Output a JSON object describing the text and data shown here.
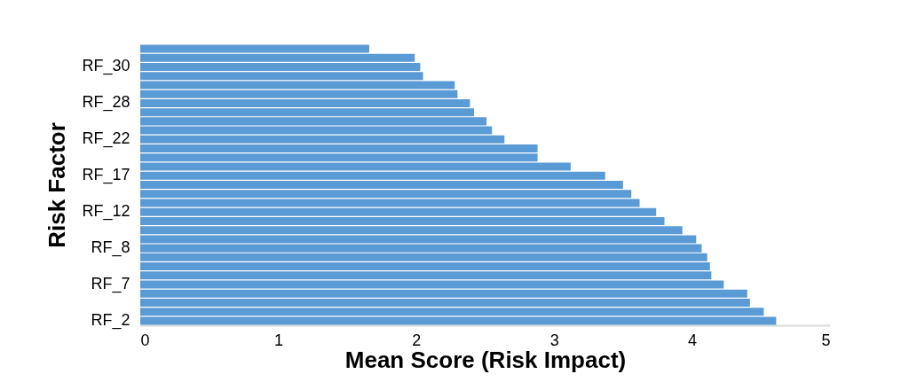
{
  "chart_data": {
    "type": "bar",
    "orientation": "horizontal",
    "xlabel": "Mean Score  (Risk Impact)",
    "ylabel": "Risk Factor",
    "categories": [
      null,
      null,
      "RF_30",
      null,
      null,
      null,
      "RF_28",
      null,
      null,
      null,
      "RF_22",
      null,
      null,
      null,
      "RF_17",
      null,
      null,
      null,
      "RF_12",
      null,
      null,
      null,
      "RF_8",
      null,
      null,
      null,
      "RF_7",
      null,
      null,
      null,
      "RF_2"
    ],
    "values": [
      1.66,
      1.99,
      2.03,
      2.05,
      2.28,
      2.3,
      2.39,
      2.42,
      2.51,
      2.55,
      2.64,
      2.88,
      2.88,
      3.12,
      3.37,
      3.5,
      3.56,
      3.62,
      3.74,
      3.8,
      3.93,
      4.03,
      4.07,
      4.11,
      4.13,
      4.14,
      4.23,
      4.4,
      4.42,
      4.52,
      4.61
    ],
    "color": "#5b9bd5",
    "xlim": [
      0,
      5
    ],
    "xticks": [
      0,
      1,
      2,
      3,
      4,
      5
    ],
    "grid": false
  }
}
